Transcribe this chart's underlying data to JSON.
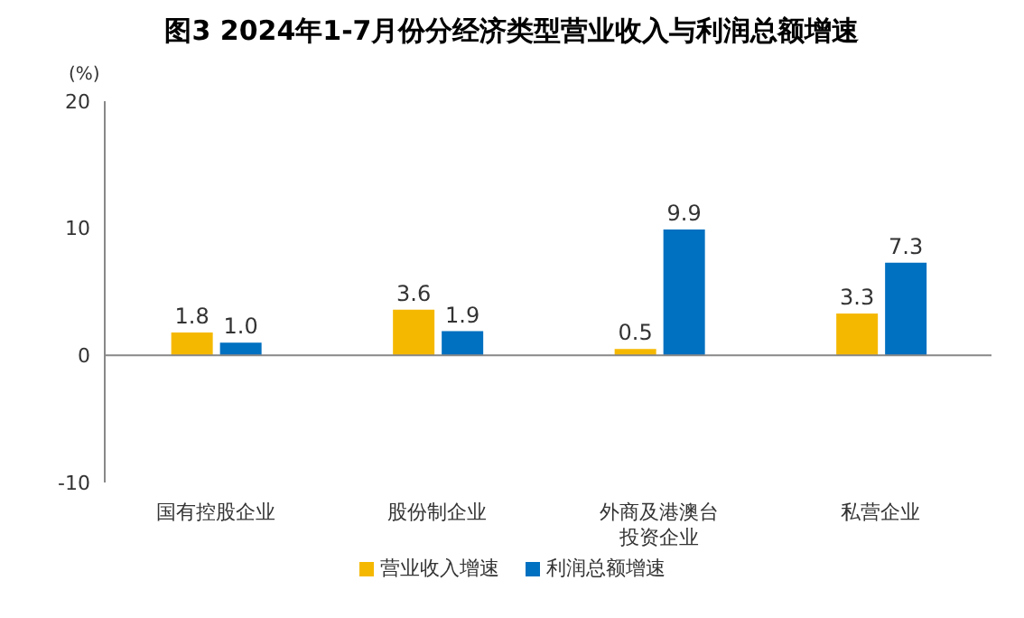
{
  "chart_data": {
    "type": "bar",
    "title": "图3  2024年1-7月份分经济类型营业收入与利润总额增速",
    "ylabel": "(%)",
    "categories": [
      "国有控股企业",
      "股份制企业",
      "外商及港澳台投资企业",
      "私营企业"
    ],
    "series": [
      {
        "name": "营业收入增速",
        "color": "#f5b800",
        "values": [
          1.8,
          3.6,
          0.5,
          3.3
        ],
        "value_labels": [
          "1.8",
          "3.6",
          "0.5",
          "3.3"
        ]
      },
      {
        "name": "利润总额增速",
        "color": "#0070c0",
        "values": [
          1.0,
          1.9,
          9.9,
          7.3
        ],
        "value_labels": [
          "1.0",
          "1.9",
          "9.9",
          "7.3"
        ]
      }
    ],
    "ylim": [
      -10,
      20
    ],
    "yticks": [
      -10,
      0,
      10,
      20
    ],
    "legend": "bottom"
  }
}
